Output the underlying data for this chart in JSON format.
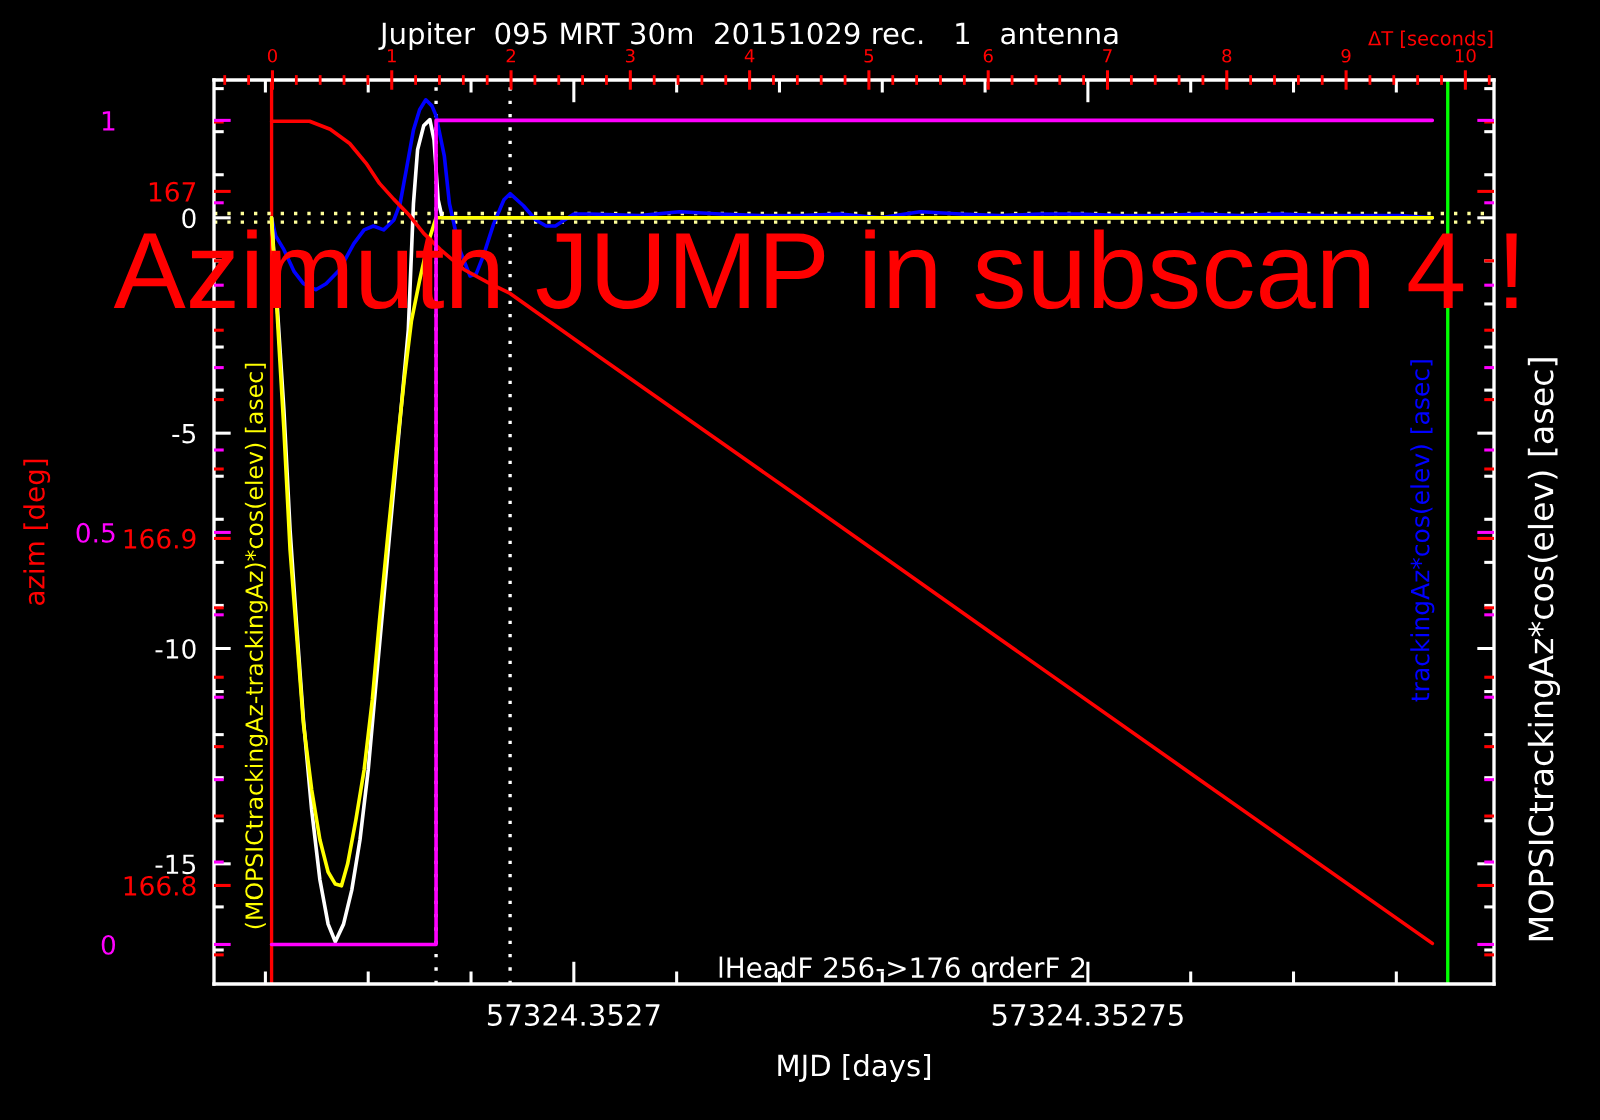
{
  "chart_data": {
    "type": "line",
    "title": "Jupiter  095 MRT 30m  20151029 rec.   1   antenna",
    "xlabel": "MJD [days]",
    "x2label": "ΔT [seconds]",
    "y2label": "azim [deg]",
    "xlim": [
      57324.352665,
      57324.3527895
    ],
    "xticks": [
      {
        "value": 57324.35267,
        "label": null
      },
      {
        "value": 57324.35268,
        "label": null
      },
      {
        "value": 57324.35269,
        "label": null
      },
      57324.3527,
      {
        "value": 57324.35271,
        "label": null
      },
      {
        "value": 57324.35272,
        "label": null
      },
      {
        "value": 57324.35273,
        "label": null
      },
      {
        "value": 57324.35274,
        "label": null
      },
      57324.35275,
      {
        "value": 57324.35276,
        "label": null
      },
      {
        "value": 57324.35277,
        "label": null
      },
      {
        "value": 57324.35278,
        "label": null
      }
    ],
    "x2lim": [
      -0.49,
      10.24
    ],
    "x2ticks": [
      {
        "value": -0.4,
        "label": null
      },
      {
        "value": -0.2,
        "label": null
      },
      0,
      {
        "value": 0.2,
        "label": null
      },
      {
        "value": 0.4,
        "label": null
      },
      {
        "value": 0.6,
        "label": null
      },
      {
        "value": 0.8,
        "label": null
      },
      1,
      {
        "value": 1.2,
        "label": null
      },
      {
        "value": 1.4,
        "label": null
      },
      {
        "value": 1.6,
        "label": null
      },
      {
        "value": 1.8,
        "label": null
      },
      2,
      {
        "value": 2.2,
        "label": null
      },
      {
        "value": 2.4,
        "label": null
      },
      {
        "value": 2.6,
        "label": null
      },
      {
        "value": 2.8,
        "label": null
      },
      3,
      {
        "value": 3.2,
        "label": null
      },
      {
        "value": 3.4,
        "label": null
      },
      {
        "value": 3.6,
        "label": null
      },
      {
        "value": 3.8,
        "label": null
      },
      4,
      {
        "value": 4.2,
        "label": null
      },
      {
        "value": 4.4,
        "label": null
      },
      {
        "value": 4.6,
        "label": null
      },
      {
        "value": 4.8,
        "label": null
      },
      5,
      {
        "value": 5.2,
        "label": null
      },
      {
        "value": 5.4,
        "label": null
      },
      {
        "value": 5.6,
        "label": null
      },
      {
        "value": 5.8,
        "label": null
      },
      6,
      {
        "value": 6.2,
        "label": null
      },
      {
        "value": 6.4,
        "label": null
      },
      {
        "value": 6.6,
        "label": null
      },
      {
        "value": 6.8,
        "label": null
      },
      7,
      {
        "value": 7.2,
        "label": null
      },
      {
        "value": 7.4,
        "label": null
      },
      {
        "value": 7.6,
        "label": null
      },
      {
        "value": 7.8,
        "label": null
      },
      8,
      {
        "value": 8.2,
        "label": null
      },
      {
        "value": 8.4,
        "label": null
      },
      {
        "value": 8.6,
        "label": null
      },
      {
        "value": 8.8,
        "label": null
      },
      9,
      {
        "value": 9.2,
        "label": null
      },
      {
        "value": 9.4,
        "label": null
      },
      {
        "value": 9.6,
        "label": null
      },
      {
        "value": 9.8,
        "label": null
      },
      10,
      {
        "value": 10.2,
        "label": null
      }
    ],
    "ylim": [
      -17.79,
      3.2
    ],
    "yticks": [
      {
        "value": -17,
        "label": null
      },
      {
        "value": -16,
        "label": null
      },
      -15,
      {
        "value": -14,
        "label": null
      },
      {
        "value": -13,
        "label": null
      },
      {
        "value": -12,
        "label": null
      },
      {
        "value": -11,
        "label": null
      },
      -10,
      {
        "value": -9,
        "label": null
      },
      {
        "value": -8,
        "label": null
      },
      {
        "value": -7,
        "label": null
      },
      {
        "value": -6,
        "label": null
      },
      -5,
      {
        "value": -4,
        "label": null
      },
      {
        "value": -3,
        "label": null
      },
      {
        "value": -2,
        "label": null
      },
      {
        "value": -1,
        "label": null
      },
      0,
      {
        "value": 1,
        "label": null
      },
      {
        "value": 2,
        "label": null
      },
      {
        "value": 3,
        "label": null
      }
    ],
    "y2lim": [
      166.7716,
      167.0321
    ],
    "y2ticks": [
      {
        "value": 166.78,
        "label": null
      },
      166.8,
      {
        "value": 166.82,
        "label": null
      },
      {
        "value": 166.84,
        "label": null
      },
      {
        "value": 166.86,
        "label": null
      },
      {
        "value": 166.88,
        "label": null
      },
      166.9,
      {
        "value": 166.92,
        "label": null
      },
      {
        "value": 166.94,
        "label": null
      },
      {
        "value": 166.96,
        "label": null
      },
      {
        "value": 166.98,
        "label": null
      },
      167,
      {
        "value": 167.02,
        "label": null
      }
    ],
    "y3lim": [
      -0.048,
      1.049
    ],
    "y3ticks": [
      0,
      {
        "value": 0.1,
        "label": null
      },
      {
        "value": 0.2,
        "label": null
      },
      {
        "value": 0.3,
        "label": null
      },
      {
        "value": 0.4,
        "label": null
      },
      0.5,
      {
        "value": 0.6,
        "label": null
      },
      {
        "value": 0.7,
        "label": null
      },
      {
        "value": 0.8,
        "label": null
      },
      {
        "value": 0.9,
        "label": null
      },
      1
    ],
    "series": [
      {
        "name": "trackingAz*cos(elev) [asec]",
        "color": "#0000ff",
        "x": [
          57324.3526706,
          57324.352671,
          57324.3526718,
          57324.3526728,
          57324.3526737,
          57324.3526749,
          57324.3526759,
          57324.3526772,
          57324.3526786,
          57324.3526796,
          57324.3526805,
          57324.3526815,
          57324.3526825,
          57324.3526831,
          57324.3526837,
          57324.3526844,
          57324.352685,
          57324.3526856,
          57324.3526862,
          57324.3526866,
          57324.3526874,
          57324.3526879,
          57324.3526889,
          57324.3526899,
          57324.3526905,
          57324.3526912,
          57324.3526922,
          57324.3526932,
          57324.3526938,
          57324.3526951,
          57324.3526963,
          57324.3526973,
          57324.3526982,
          57324.3527,
          57324.3527016,
          57324.3527064,
          57324.3527103,
          57324.3527142,
          57324.3527181,
          57324.352722,
          57324.3527259,
          57324.3527298,
          57324.3527337,
          57324.3527376,
          57324.3527414,
          57324.3527453,
          57324.3527492,
          57324.3527531,
          57324.352757,
          57324.3527609,
          57324.3527648,
          57324.3527687,
          57324.3527726,
          57324.3527765,
          57324.3527804,
          57324.3527835
        ],
        "values": [
          0,
          -0.42,
          -0.74,
          -1.25,
          -1.53,
          -1.67,
          -1.53,
          -1.21,
          -0.6,
          -0.28,
          -0.19,
          -0.28,
          -0.05,
          0.33,
          1.11,
          2.04,
          2.51,
          2.74,
          2.6,
          2.37,
          1.44,
          0.33,
          -0.74,
          -1.35,
          -1.3,
          -0.88,
          -0.14,
          0.42,
          0.56,
          0.28,
          -0.05,
          -0.19,
          -0.19,
          0.09,
          0.09,
          0.05,
          0.14,
          0.09,
          0.05,
          0.05,
          0.09,
          0,
          0.14,
          0.09,
          0.05,
          0.09,
          0.09,
          0.05,
          0.05,
          0.09,
          0.05,
          0.09,
          0.05,
          0.05,
          0.05,
          0
        ]
      },
      {
        "name": "MOPSICtrackingAz*cos(elev) [asec]",
        "color": "#ffffff",
        "x": [
          57324.3526706,
          57324.3526718,
          57324.3526724,
          57324.352673,
          57324.3526737,
          57324.3526745,
          57324.3526753,
          57324.3526761,
          57324.3526768,
          57324.3526776,
          57324.3526784,
          57324.3526792,
          57324.35268,
          57324.3526807,
          57324.3526815,
          57324.3526823,
          57324.3526831,
          57324.3526839,
          57324.3526844,
          57324.3526848,
          57324.3526854,
          57324.352686,
          57324.3526864,
          57324.3526868,
          57324.3526872,
          57324.3527835
        ],
        "values": [
          0,
          -4.46,
          -7.25,
          -9.34,
          -11.66,
          -13.75,
          -15.37,
          -16.4,
          -16.81,
          -16.4,
          -15.61,
          -14.44,
          -12.82,
          -10.96,
          -8.87,
          -6.78,
          -4.69,
          -2.6,
          0.33,
          1.58,
          2.14,
          2.28,
          1.81,
          0.42,
          0,
          0
        ]
      },
      {
        "name": "(MOPSICtrackingAz-trackingAz)*cos(elev) [asec]",
        "color": "#ffff00",
        "x": [
          57324.3526706,
          57324.3526718,
          57324.3526724,
          57324.352673,
          57324.3526737,
          57324.3526745,
          57324.3526753,
          57324.3526761,
          57324.3526768,
          57324.3526774,
          57324.352678,
          57324.3526788,
          57324.3526796,
          57324.3526804,
          57324.3526811,
          57324.3526819,
          57324.3526827,
          57324.3526835,
          57324.3526842,
          57324.352685,
          57324.3526858,
          57324.3526866,
          57324.3527835
        ],
        "values": [
          0,
          -4.92,
          -7.71,
          -9.57,
          -11.75,
          -13.28,
          -14.44,
          -15.19,
          -15.47,
          -15.51,
          -15.0,
          -13.98,
          -12.82,
          -11.19,
          -9.34,
          -7.39,
          -5.53,
          -3.76,
          -2.4,
          -1.45,
          -0.6,
          0,
          0
        ]
      },
      {
        "axis": "y2",
        "color": "#ff0000",
        "x": [
          57324.3526706,
          57324.3526743,
          57324.3526763,
          57324.3526782,
          57324.3526798,
          57324.3526811,
          57324.3526825,
          57324.352684,
          57324.3526854,
          57324.352687,
          57324.3526893,
          57324.3526918,
          57324.3526938,
          57324.3527025,
          57324.352722,
          57324.3527414,
          57324.3527609,
          57324.3527835
        ],
        "values": [
          167.0202,
          167.0202,
          167.0179,
          167.0138,
          167.0081,
          167.0023,
          166.9977,
          166.9931,
          166.9879,
          166.9833,
          166.9775,
          166.9735,
          166.9706,
          166.9523,
          166.9117,
          166.8711,
          166.8304,
          166.7833
        ]
      },
      {
        "type": "step",
        "axis": "y3",
        "color": "#ff00ff",
        "x": [
          57324.3526706,
          57324.3526866,
          57324.3527835
        ],
        "values": [
          0,
          1,
          1
        ]
      }
    ],
    "ref_lines": [
      {
        "axis": "x",
        "value": 57324.3526706,
        "color": "#ff0000",
        "line_style": "solid"
      },
      {
        "axis": "x",
        "value": 57324.3526866,
        "color": "#ffffff",
        "line_style": "dotted"
      },
      {
        "axis": "x",
        "value": 57324.3526938,
        "color": "#ffffff",
        "line_style": "dotted"
      },
      {
        "axis": "x",
        "value": 57324.352785,
        "color": "#00ff00",
        "line_style": "solid"
      },
      {
        "axis": "y",
        "value": 0.1,
        "color": "#ffff99",
        "line_style": "dotted"
      },
      {
        "axis": "y",
        "value": -0.1,
        "color": "#ffff99",
        "line_style": "dotted"
      }
    ],
    "annotations": [
      "Azimuth JUMP in subscan 4 !",
      "lHeadF 256->176 orderF 2"
    ]
  }
}
